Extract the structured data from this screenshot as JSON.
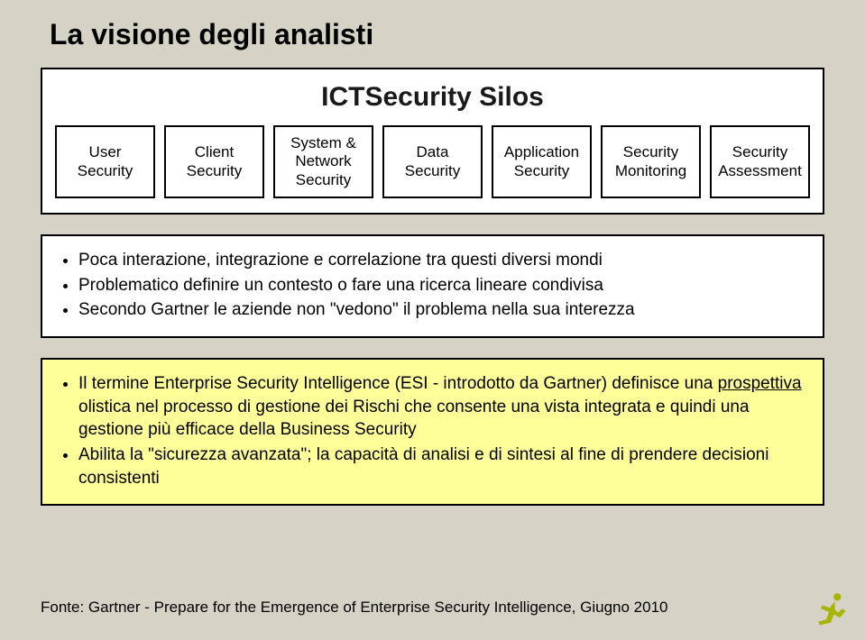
{
  "slide": {
    "background_color": "#d6d2c6",
    "title": "La visione degli analisti",
    "title_color": "#000000"
  },
  "silos": {
    "box_title": "ICTSecurity Silos",
    "items": [
      "User Security",
      "Client Security",
      "System & Network Security",
      "Data Security",
      "Application Security",
      "Security Monitoring",
      "Security Assessment"
    ]
  },
  "box1": {
    "background_color": "#ffffff",
    "bullets": [
      "Poca interazione, integrazione e correlazione tra questi diversi mondi",
      "Problematico definire un contesto o fare una ricerca lineare condivisa",
      "Secondo Gartner le aziende non \"vedono\" il problema nella sua interezza"
    ]
  },
  "box2": {
    "background_color": "#ffff99",
    "bullets_html": [
      "Il termine Enterprise Security Intelligence (ESI - introdotto da Gartner) definisce una <span class=\"underline\">prospettiva</span> olistica nel processo di gestione dei Rischi che consente una vista integrata e quindi una gestione più efficace della Business Security",
      "Abilita la \"sicurezza avanzata\"; la capacità di analisi e di sintesi al fine di prendere decisioni consistenti"
    ]
  },
  "footer": {
    "text": "Fonte: Gartner - Prepare for the Emergence of Enterprise Security Intelligence, Giugno 2010"
  },
  "icon": {
    "color": "#a8b400"
  }
}
